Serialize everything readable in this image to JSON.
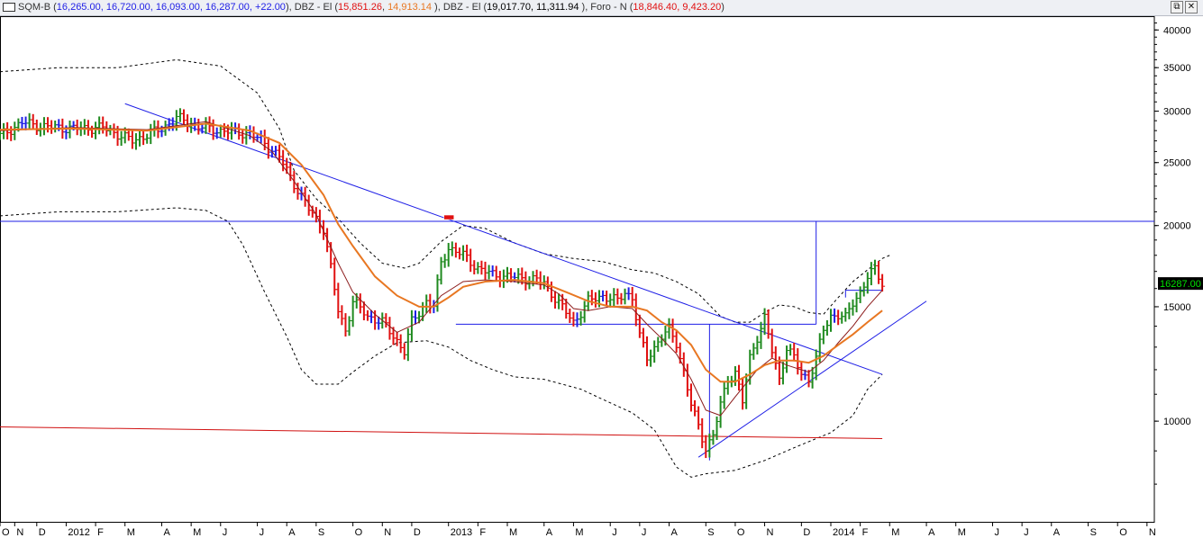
{
  "window": {
    "restore_glyph": "⧉",
    "close_glyph": "✕",
    "app_icon": "chart-window-icon"
  },
  "legend": {
    "symbol_label": "SQM-B (",
    "symbol_values": "16,265.00, 16,720.00, 16,093.00, 16,287.00, +22.00",
    "sep1": "), DBZ - El (",
    "dbz1_a": "15,851.26",
    "dbz1_b": "14,913.14",
    "sep2": " ), DBZ - El (",
    "dbz2_values": "19,017.70, 11,311.94",
    "sep3": " ), Foro - N (",
    "foro_values": "18,846.40, 9,423.20",
    "close": ")",
    "colors": {
      "symbol": "#1e1ee6",
      "dbz1_a": "#e01010",
      "dbz1_b": "#e87722",
      "dbz2": "#000000",
      "foro": "#e01010",
      "plain": "#333333"
    }
  },
  "price_label": {
    "text": "16287.00",
    "bg": "#000000",
    "fg": "#00e000"
  },
  "chart_data": {
    "type": "bar",
    "scale": "log",
    "ylim": [
      7000,
      42000
    ],
    "y_ticks": [
      10000,
      15000,
      20000,
      25000,
      30000,
      35000,
      40000
    ],
    "y_tick_labels": [
      "10000",
      "15000",
      "20000",
      "25000",
      "30000",
      "35000",
      "40000"
    ],
    "x_range": [
      0,
      157
    ],
    "x_ticks": [
      {
        "label": "O",
        "w": 0
      },
      {
        "label": "N",
        "w": 2
      },
      {
        "label": "D",
        "w": 5
      },
      {
        "label": "2012",
        "w": 9
      },
      {
        "label": "F",
        "w": 13
      },
      {
        "label": "M",
        "w": 17
      },
      {
        "label": "A",
        "w": 22
      },
      {
        "label": "M",
        "w": 26
      },
      {
        "label": "J",
        "w": 30
      },
      {
        "label": "J",
        "w": 35
      },
      {
        "label": "A",
        "w": 39
      },
      {
        "label": "S",
        "w": 43
      },
      {
        "label": "O",
        "w": 48
      },
      {
        "label": "N",
        "w": 52
      },
      {
        "label": "D",
        "w": 56
      },
      {
        "label": "2013",
        "w": 61
      },
      {
        "label": "F",
        "w": 65
      },
      {
        "label": "M",
        "w": 69
      },
      {
        "label": "A",
        "w": 74
      },
      {
        "label": "M",
        "w": 78
      },
      {
        "label": "J",
        "w": 83
      },
      {
        "label": "J",
        "w": 87
      },
      {
        "label": "A",
        "w": 91
      },
      {
        "label": "S",
        "w": 96
      },
      {
        "label": "O",
        "w": 100
      },
      {
        "label": "N",
        "w": 104
      },
      {
        "label": "D",
        "w": 109
      },
      {
        "label": "2014",
        "w": 113
      },
      {
        "label": "F",
        "w": 117
      },
      {
        "label": "M",
        "w": 121
      },
      {
        "label": "A",
        "w": 126
      },
      {
        "label": "M",
        "w": 130
      },
      {
        "label": "J",
        "w": 135
      },
      {
        "label": "J",
        "w": 139
      },
      {
        "label": "A",
        "w": 143
      },
      {
        "label": "S",
        "w": 148
      },
      {
        "label": "O",
        "w": 152
      },
      {
        "label": "N",
        "w": 156
      }
    ],
    "close_path": [
      [
        0,
        27500
      ],
      [
        3,
        28800
      ],
      [
        6,
        28400
      ],
      [
        10,
        28200
      ],
      [
        14,
        28300
      ],
      [
        18,
        27000
      ],
      [
        22,
        28200
      ],
      [
        24,
        29300
      ],
      [
        27,
        28400
      ],
      [
        30,
        28000
      ],
      [
        34,
        27700
      ],
      [
        36,
        26800
      ],
      [
        38,
        25500
      ],
      [
        40,
        23200
      ],
      [
        42,
        21200
      ],
      [
        44,
        19800
      ],
      [
        45,
        17200
      ],
      [
        46,
        14800
      ],
      [
        47,
        13800
      ],
      [
        48,
        15300
      ],
      [
        50,
        14500
      ],
      [
        52,
        14200
      ],
      [
        54,
        13300
      ],
      [
        55,
        12800
      ],
      [
        56,
        14200
      ],
      [
        57,
        14700
      ],
      [
        58,
        15300
      ],
      [
        59,
        15000
      ],
      [
        60,
        17500
      ],
      [
        61,
        18500
      ],
      [
        63,
        18000
      ],
      [
        65,
        17200
      ],
      [
        67,
        16800
      ],
      [
        69,
        16700
      ],
      [
        71,
        16600
      ],
      [
        73,
        16500
      ],
      [
        74,
        16300
      ],
      [
        76,
        15200
      ],
      [
        78,
        14200
      ],
      [
        79,
        14700
      ],
      [
        80,
        15300
      ],
      [
        82,
        15600
      ],
      [
        84,
        15300
      ],
      [
        85,
        15800
      ],
      [
        86,
        15500
      ],
      [
        87,
        13500
      ],
      [
        88,
        12500
      ],
      [
        90,
        13500
      ],
      [
        91,
        13800
      ],
      [
        92,
        13200
      ],
      [
        93,
        11900
      ],
      [
        94,
        10600
      ],
      [
        95,
        9800
      ],
      [
        96,
        9100
      ],
      [
        97,
        9500
      ],
      [
        98,
        10600
      ],
      [
        99,
        11600
      ],
      [
        100,
        11900
      ],
      [
        101,
        10700
      ],
      [
        102,
        12500
      ],
      [
        103,
        13500
      ],
      [
        104,
        14400
      ],
      [
        105,
        12800
      ],
      [
        106,
        11600
      ],
      [
        107,
        13000
      ],
      [
        108,
        12500
      ],
      [
        109,
        11800
      ],
      [
        110,
        11600
      ],
      [
        111,
        12500
      ],
      [
        112,
        13800
      ],
      [
        113,
        14500
      ],
      [
        114,
        14600
      ],
      [
        115,
        14400
      ],
      [
        116,
        15200
      ],
      [
        117,
        15800
      ],
      [
        118,
        16700
      ],
      [
        119,
        17100
      ],
      [
        120,
        16300
      ]
    ],
    "ma_fast": [
      [
        0,
        28000
      ],
      [
        10,
        28300
      ],
      [
        20,
        28100
      ],
      [
        28,
        28900
      ],
      [
        34,
        27500
      ],
      [
        37,
        26000
      ],
      [
        40,
        23400
      ],
      [
        43,
        20800
      ],
      [
        46,
        17500
      ],
      [
        48,
        15800
      ],
      [
        51,
        14600
      ],
      [
        54,
        13700
      ],
      [
        57,
        14200
      ],
      [
        60,
        15600
      ],
      [
        63,
        16400
      ],
      [
        66,
        16500
      ],
      [
        70,
        16400
      ],
      [
        74,
        16200
      ],
      [
        76,
        15700
      ],
      [
        78,
        14900
      ],
      [
        80,
        14800
      ],
      [
        83,
        15000
      ],
      [
        86,
        14900
      ],
      [
        88,
        14100
      ],
      [
        90,
        13400
      ],
      [
        92,
        12700
      ],
      [
        94,
        11600
      ],
      [
        96,
        10400
      ],
      [
        98,
        10200
      ],
      [
        100,
        10900
      ],
      [
        103,
        12000
      ],
      [
        105,
        12500
      ],
      [
        107,
        12200
      ],
      [
        110,
        11900
      ],
      [
        112,
        12400
      ],
      [
        114,
        13200
      ],
      [
        116,
        14000
      ],
      [
        118,
        15000
      ],
      [
        120,
        15900
      ]
    ],
    "ma_slow": [
      [
        0,
        28100
      ],
      [
        10,
        28200
      ],
      [
        20,
        28000
      ],
      [
        28,
        28700
      ],
      [
        34,
        28000
      ],
      [
        38,
        26800
      ],
      [
        41,
        24800
      ],
      [
        44,
        22300
      ],
      [
        46,
        20100
      ],
      [
        48,
        18600
      ],
      [
        51,
        16700
      ],
      [
        54,
        15600
      ],
      [
        57,
        15000
      ],
      [
        59,
        15000
      ],
      [
        61,
        15500
      ],
      [
        63,
        16100
      ],
      [
        66,
        16400
      ],
      [
        70,
        16500
      ],
      [
        74,
        16300
      ],
      [
        77,
        15800
      ],
      [
        80,
        15300
      ],
      [
        83,
        15000
      ],
      [
        86,
        15000
      ],
      [
        88,
        14800
      ],
      [
        90,
        14200
      ],
      [
        92,
        13800
      ],
      [
        94,
        13100
      ],
      [
        96,
        12000
      ],
      [
        98,
        11500
      ],
      [
        100,
        11500
      ],
      [
        102,
        11800
      ],
      [
        104,
        12200
      ],
      [
        106,
        12400
      ],
      [
        108,
        12400
      ],
      [
        110,
        12300
      ],
      [
        112,
        12600
      ],
      [
        114,
        13100
      ],
      [
        116,
        13600
      ],
      [
        118,
        14200
      ],
      [
        120,
        14800
      ]
    ],
    "bollinger_upper": [
      [
        0,
        34500
      ],
      [
        8,
        35000
      ],
      [
        16,
        35000
      ],
      [
        24,
        36000
      ],
      [
        30,
        35200
      ],
      [
        35,
        32000
      ],
      [
        38,
        28200
      ],
      [
        40,
        24300
      ],
      [
        43,
        22000
      ],
      [
        46,
        20500
      ],
      [
        49,
        18800
      ],
      [
        52,
        17500
      ],
      [
        55,
        17200
      ],
      [
        57,
        17500
      ],
      [
        60,
        18900
      ],
      [
        63,
        20000
      ],
      [
        66,
        19800
      ],
      [
        70,
        18800
      ],
      [
        74,
        18100
      ],
      [
        78,
        17800
      ],
      [
        82,
        17600
      ],
      [
        86,
        17100
      ],
      [
        89,
        16900
      ],
      [
        92,
        16400
      ],
      [
        95,
        15700
      ],
      [
        98,
        14500
      ],
      [
        100,
        14200
      ],
      [
        102,
        14200
      ],
      [
        104,
        14700
      ],
      [
        106,
        15100
      ],
      [
        108,
        15000
      ],
      [
        110,
        14700
      ],
      [
        112,
        14600
      ],
      [
        114,
        15500
      ],
      [
        116,
        16400
      ],
      [
        118,
        17100
      ],
      [
        120,
        17800
      ],
      [
        121,
        18000
      ]
    ],
    "bollinger_lower": [
      [
        0,
        20700
      ],
      [
        8,
        21000
      ],
      [
        16,
        21000
      ],
      [
        24,
        21300
      ],
      [
        28,
        21100
      ],
      [
        31,
        20300
      ],
      [
        33,
        18700
      ],
      [
        36,
        15800
      ],
      [
        39,
        13500
      ],
      [
        41,
        12000
      ],
      [
        43,
        11400
      ],
      [
        46,
        11400
      ],
      [
        48,
        11900
      ],
      [
        51,
        12600
      ],
      [
        54,
        13200
      ],
      [
        58,
        13300
      ],
      [
        61,
        13000
      ],
      [
        64,
        12400
      ],
      [
        67,
        12000
      ],
      [
        70,
        11700
      ],
      [
        74,
        11600
      ],
      [
        79,
        11200
      ],
      [
        82,
        10800
      ],
      [
        86,
        10300
      ],
      [
        89,
        9700
      ],
      [
        92,
        8500
      ],
      [
        94,
        8200
      ],
      [
        96,
        8300
      ],
      [
        100,
        8400
      ],
      [
        104,
        8700
      ],
      [
        108,
        9100
      ],
      [
        110,
        9300
      ],
      [
        113,
        9600
      ],
      [
        116,
        10200
      ],
      [
        118,
        11200
      ],
      [
        120,
        11800
      ]
    ],
    "resistance_level": 20300,
    "top_trendline": [
      [
        17,
        30800
      ],
      [
        120,
        11800
      ]
    ],
    "support_trendline": [
      [
        95,
        8800
      ],
      [
        126,
        15300
      ]
    ],
    "neckline": [
      [
        62,
        14100
      ],
      [
        111,
        14100
      ]
    ],
    "measure_start_x": 96.5,
    "measure_start_low": 8700,
    "measure_end_x": 111,
    "top_box": [
      [
        115,
        15900
      ],
      [
        120,
        15900
      ]
    ],
    "floor_line": [
      [
        0,
        9800
      ],
      [
        120,
        9400
      ]
    ],
    "foro_flag": {
      "x": 61,
      "y": 20300
    },
    "colors": {
      "up_bar": "#1f8a1f",
      "neutral_bar": "#1e1ee6",
      "down_bar": "#e01010",
      "ma_fast": "#8b1a1a",
      "ma_slow": "#e87722",
      "bands": "#000000",
      "lines": "#1e1ee6",
      "floor": "#d01010"
    }
  }
}
